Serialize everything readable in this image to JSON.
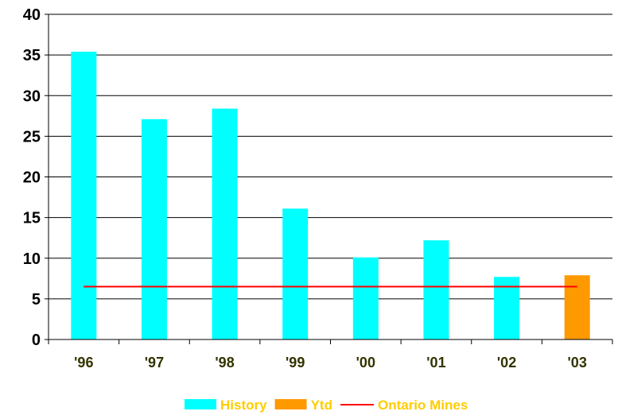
{
  "chart_data": {
    "type": "bar",
    "categories": [
      "'96",
      "'97",
      "'98",
      "'99",
      "'00",
      "'01",
      "'02",
      "'03"
    ],
    "series": [
      {
        "name": "History",
        "values": [
          35.4,
          27.1,
          28.4,
          16.1,
          10.1,
          12.2,
          7.7,
          null
        ]
      },
      {
        "name": "Ytd",
        "values": [
          null,
          null,
          null,
          null,
          null,
          null,
          null,
          7.9
        ]
      },
      {
        "name": "Ontario Mines",
        "type": "line",
        "values": [
          6.5,
          6.5,
          6.5,
          6.5,
          6.5,
          6.5,
          6.5,
          6.5
        ]
      }
    ],
    "y_ticks": [
      "0",
      "5",
      "10",
      "15",
      "20",
      "25",
      "30",
      "35",
      "40"
    ],
    "ylim": [
      0,
      40
    ],
    "title": "",
    "xlabel": "",
    "ylabel": "",
    "grid": true,
    "legend_position": "bottom",
    "colors": {
      "History": "#00ffff",
      "Ytd": "#ff9900",
      "Ontario Mines": "#ff0000",
      "legend_text": "#ffcc00",
      "axis_text": "#333300"
    }
  }
}
